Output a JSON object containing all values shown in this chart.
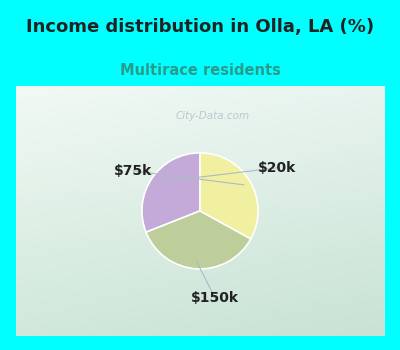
{
  "title": "Income distribution in Olla, LA (%)",
  "subtitle": "Multirace residents",
  "title_fontsize": 13,
  "subtitle_fontsize": 10.5,
  "top_bg_color": "#00FFFF",
  "watermark": "City-Data.com",
  "slices": [
    {
      "label": "$20k",
      "value": 31,
      "color": "#c4aad8"
    },
    {
      "label": "$150k",
      "value": 36,
      "color": "#bece9a"
    },
    {
      "label": "$75k",
      "value": 33,
      "color": "#f0f0a0"
    }
  ],
  "startangle": 90,
  "label_fontsize": 10,
  "label_color": "#222222",
  "chart_bg_left": "#e2f0ea",
  "chart_bg_right": "#d8ecdf",
  "chart_bg_topleft": "#f0f8f4",
  "chart_bg_bottomright": "#c4ddd0"
}
